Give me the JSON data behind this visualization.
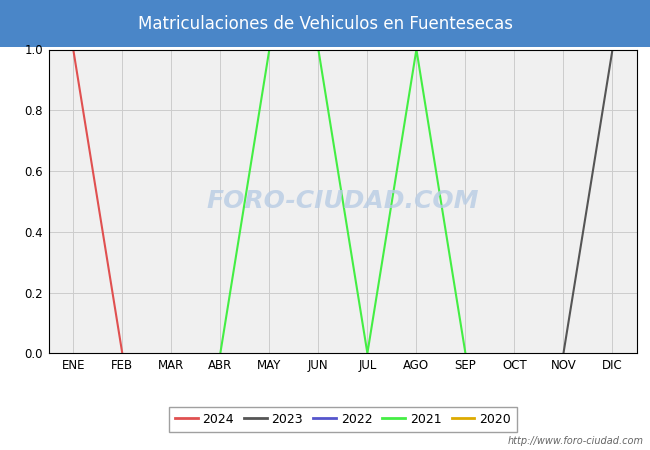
{
  "title": "Matriculaciones de Vehiculos en Fuentesecas",
  "title_color": "#ffffff",
  "title_bg_color": "#4a86c8",
  "months": [
    "ENE",
    "FEB",
    "MAR",
    "ABR",
    "MAY",
    "JUN",
    "JUL",
    "AGO",
    "SEP",
    "OCT",
    "NOV",
    "DIC"
  ],
  "series": {
    "2024": {
      "color": "#e05050",
      "data": [
        1.0,
        0.0,
        null,
        null,
        null,
        null,
        null,
        null,
        null,
        null,
        null,
        null
      ]
    },
    "2023": {
      "color": "#555555",
      "data": [
        null,
        null,
        null,
        null,
        null,
        null,
        null,
        null,
        null,
        null,
        0.0,
        1.0
      ]
    },
    "2022": {
      "color": "#5555cc",
      "data": [
        null,
        null,
        null,
        null,
        null,
        null,
        null,
        null,
        null,
        null,
        null,
        null
      ]
    },
    "2021": {
      "color": "#44ee44",
      "data": [
        null,
        null,
        null,
        0.0,
        1.0,
        1.0,
        0.0,
        1.0,
        0.0,
        null,
        null,
        null
      ]
    },
    "2020": {
      "color": "#ddaa00",
      "data": [
        null,
        null,
        null,
        null,
        null,
        null,
        null,
        null,
        null,
        null,
        null,
        null
      ]
    }
  },
  "legend_years": [
    "2024",
    "2023",
    "2022",
    "2021",
    "2020"
  ],
  "ylim": [
    0.0,
    1.0
  ],
  "yticks": [
    0.0,
    0.2,
    0.4,
    0.6,
    0.8,
    1.0
  ],
  "grid_color": "#cccccc",
  "plot_bg_color": "#f0f0f0",
  "fig_bg_color": "#ffffff",
  "border_color": "#000000",
  "watermark_chart": "FORO-CIUDAD.COM",
  "watermark_chart_color": "#b8cce4",
  "watermark_url": "http://www.foro-ciudad.com",
  "figsize": [
    6.5,
    4.5
  ],
  "dpi": 100
}
